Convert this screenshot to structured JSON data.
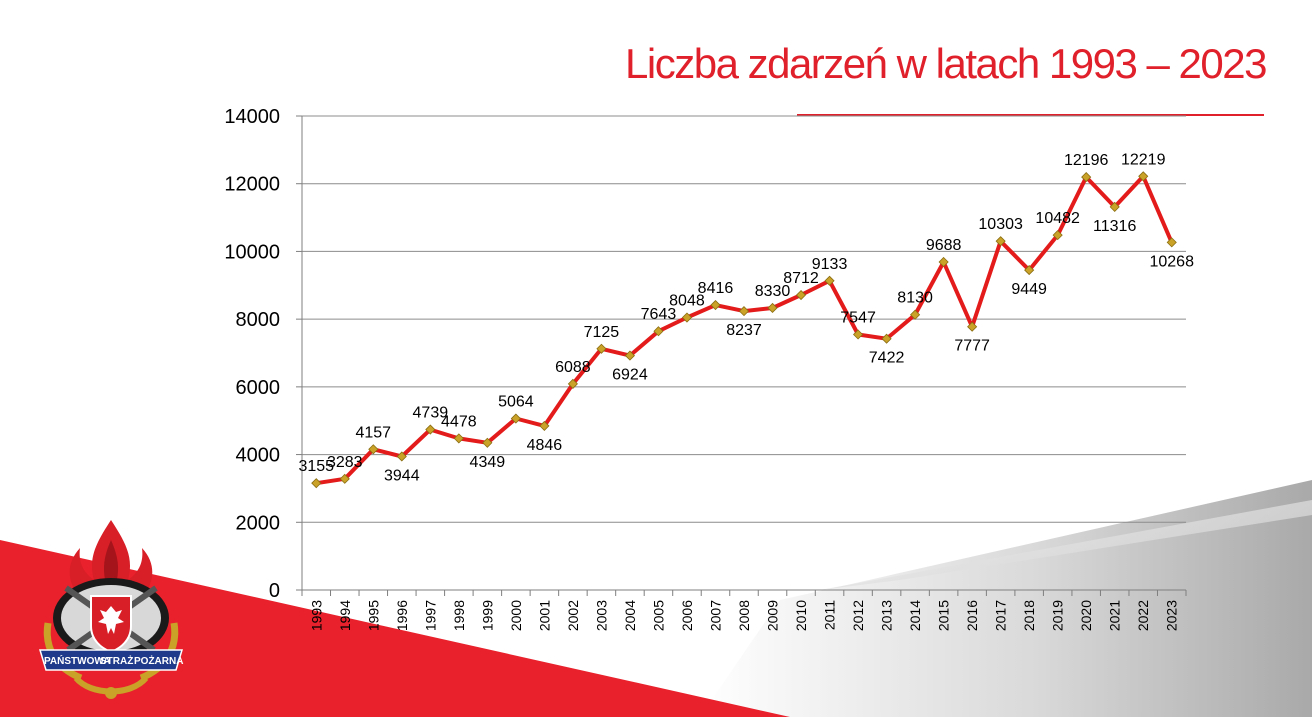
{
  "slide": {
    "title": "Liczba zdarzeń w latach 1993 – 2023",
    "brand_red": "#e0202a",
    "logo": {
      "icon": "fire-service-emblem-icon",
      "text_left": "PAŃSTWOWA",
      "text_mid": "STRAŻ",
      "text_right": "POŻARNA"
    }
  },
  "chart_data": {
    "type": "line",
    "title": "Liczba zdarzeń w latach 1993 – 2023",
    "xlabel": "",
    "ylabel": "",
    "ylim": [
      0,
      14000
    ],
    "yticks": [
      0,
      2000,
      4000,
      6000,
      8000,
      10000,
      12000,
      14000
    ],
    "grid": true,
    "legend": "none",
    "line_color": "#e41b1b",
    "marker_color": "#c9a227",
    "categories": [
      "1993",
      "1994",
      "1995",
      "1996",
      "1997",
      "1998",
      "1999",
      "2000",
      "2001",
      "2002",
      "2003",
      "2004",
      "2005",
      "2006",
      "2007",
      "2008",
      "2009",
      "2010",
      "2011",
      "2012",
      "2013",
      "2014",
      "2015",
      "2016",
      "2017",
      "2018",
      "2019",
      "2020",
      "2021",
      "2022",
      "2023"
    ],
    "series": [
      {
        "values": [
          3155,
          3283,
          4157,
          3944,
          4739,
          4478,
          4349,
          5064,
          4846,
          6088,
          7125,
          6924,
          7643,
          8048,
          8416,
          8237,
          8330,
          8712,
          9133,
          7547,
          7422,
          8130,
          9688,
          7777,
          10303,
          9449,
          10482,
          12196,
          11316,
          12219,
          10268
        ]
      }
    ]
  }
}
